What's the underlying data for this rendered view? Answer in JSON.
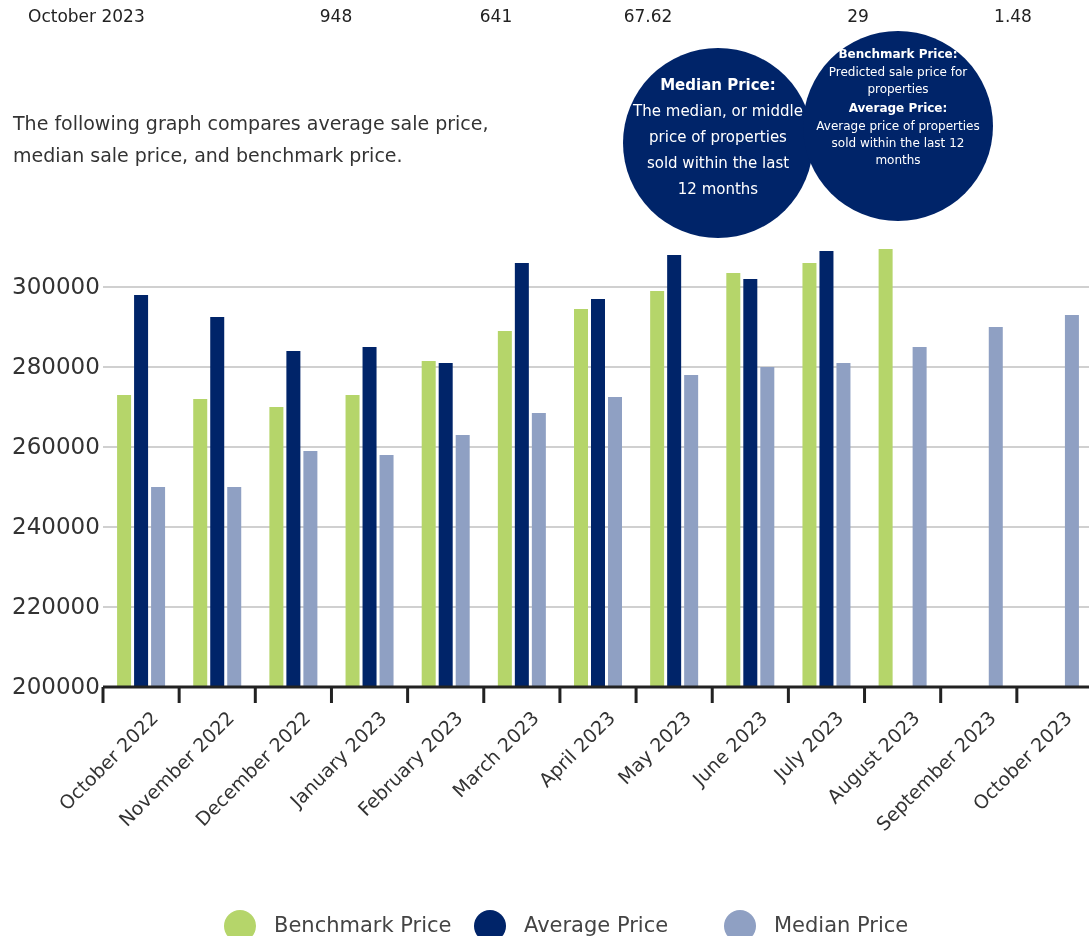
{
  "chart_data": {
    "type": "bar",
    "categories": [
      "October 2022",
      "November 2022",
      "December 2022",
      "January 2023",
      "February 2023",
      "March 2023",
      "April 2023",
      "May 2023",
      "June 2023",
      "July 2023",
      "August 2023",
      "September 2023",
      "October 2023"
    ],
    "series": [
      {
        "name": "Benchmark Price",
        "color": "#b5d56a",
        "values": [
          273000,
          272000,
          270000,
          273000,
          281500,
          289000,
          294500,
          299000,
          303500,
          306000,
          309500,
          null,
          null
        ]
      },
      {
        "name": "Average Price",
        "color": "#002469",
        "values": [
          298000,
          292500,
          284000,
          285000,
          281000,
          306000,
          297000,
          308000,
          302000,
          309000,
          null,
          null,
          null
        ]
      },
      {
        "name": "Median Price",
        "color": "#8fa0c3",
        "values": [
          250000,
          250000,
          259000,
          258000,
          263000,
          268500,
          272500,
          278000,
          280000,
          281000,
          285000,
          290000,
          293000
        ]
      }
    ],
    "ylim": [
      200000,
      310000
    ],
    "yticks": [
      200000,
      220000,
      240000,
      260000,
      280000,
      300000
    ],
    "grid": "y",
    "legend": "bottom",
    "annotations": [
      "October 2023",
      "948",
      "641",
      "67.62",
      "29",
      "1.48",
      "The following graph compares average sale price, median sale price, and benchmark price.",
      "Median Price:",
      "The median, or middle price of properties sold within the last 12 months",
      "Benchmark Price:",
      "Predicted sale price for properties",
      "Average Price:",
      "Average price of properties sold within the last 12 months"
    ]
  }
}
